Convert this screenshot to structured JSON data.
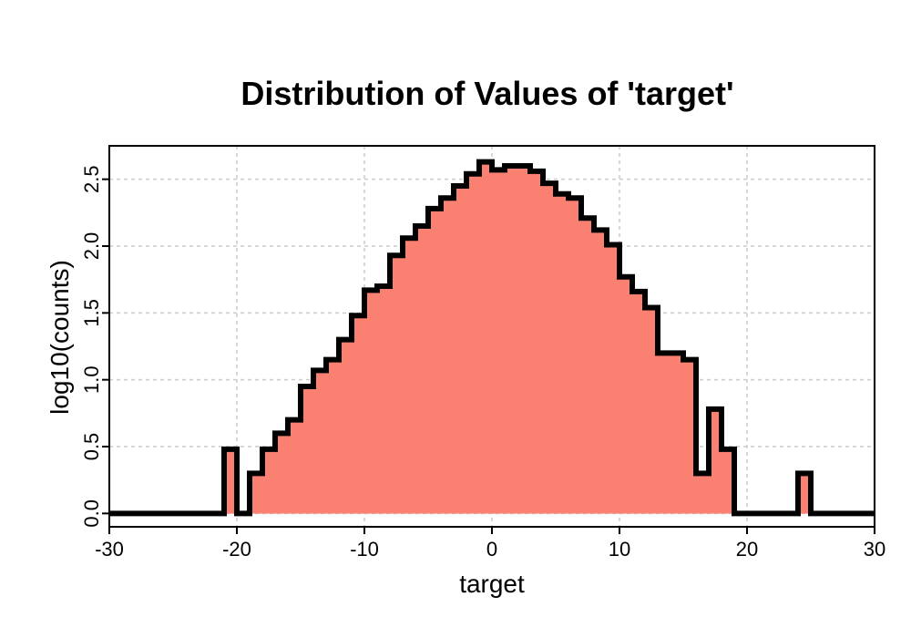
{
  "chart_data": {
    "type": "area",
    "title": "Distribution of Values of 'target'",
    "xlabel": "target",
    "ylabel": "log10(counts)",
    "xlim": [
      -30,
      30
    ],
    "ylim": [
      -0.1,
      2.75
    ],
    "xticks": [
      "-30",
      "-20",
      "-10",
      "0",
      "10",
      "20",
      "30"
    ],
    "yticks": [
      "0.0",
      "0.5",
      "1.0",
      "1.5",
      "2.0",
      "2.5"
    ],
    "grid": true,
    "fill_color": "#fa8072",
    "line_color": "#000000",
    "bins": [
      {
        "x0": -30,
        "x1": -21,
        "y": 0.0
      },
      {
        "x0": -21,
        "x1": -20,
        "y": 0.48
      },
      {
        "x0": -20,
        "x1": -19,
        "y": 0.0
      },
      {
        "x0": -19,
        "x1": -18,
        "y": 0.3
      },
      {
        "x0": -18,
        "x1": -17,
        "y": 0.48
      },
      {
        "x0": -17,
        "x1": -16,
        "y": 0.6
      },
      {
        "x0": -16,
        "x1": -15,
        "y": 0.7
      },
      {
        "x0": -15,
        "x1": -14,
        "y": 0.95
      },
      {
        "x0": -14,
        "x1": -13,
        "y": 1.07
      },
      {
        "x0": -13,
        "x1": -12,
        "y": 1.15
      },
      {
        "x0": -12,
        "x1": -11,
        "y": 1.3
      },
      {
        "x0": -11,
        "x1": -10,
        "y": 1.48
      },
      {
        "x0": -10,
        "x1": -9,
        "y": 1.67
      },
      {
        "x0": -9,
        "x1": -8,
        "y": 1.7
      },
      {
        "x0": -8,
        "x1": -7,
        "y": 1.93
      },
      {
        "x0": -7,
        "x1": -6,
        "y": 2.06
      },
      {
        "x0": -6,
        "x1": -5,
        "y": 2.15
      },
      {
        "x0": -5,
        "x1": -4,
        "y": 2.28
      },
      {
        "x0": -4,
        "x1": -3,
        "y": 2.36
      },
      {
        "x0": -3,
        "x1": -2,
        "y": 2.45
      },
      {
        "x0": -2,
        "x1": -1,
        "y": 2.54
      },
      {
        "x0": -1,
        "x1": 0,
        "y": 2.63
      },
      {
        "x0": 0,
        "x1": 1,
        "y": 2.57
      },
      {
        "x0": 1,
        "x1": 3,
        "y": 2.6
      },
      {
        "x0": 3,
        "x1": 4,
        "y": 2.56
      },
      {
        "x0": 4,
        "x1": 5,
        "y": 2.47
      },
      {
        "x0": 5,
        "x1": 6,
        "y": 2.39
      },
      {
        "x0": 6,
        "x1": 7,
        "y": 2.36
      },
      {
        "x0": 7,
        "x1": 8,
        "y": 2.21
      },
      {
        "x0": 8,
        "x1": 9,
        "y": 2.12
      },
      {
        "x0": 9,
        "x1": 10,
        "y": 2.01
      },
      {
        "x0": 10,
        "x1": 11,
        "y": 1.77
      },
      {
        "x0": 11,
        "x1": 12,
        "y": 1.66
      },
      {
        "x0": 12,
        "x1": 13,
        "y": 1.54
      },
      {
        "x0": 13,
        "x1": 15,
        "y": 1.2
      },
      {
        "x0": 15,
        "x1": 16,
        "y": 1.15
      },
      {
        "x0": 16,
        "x1": 17,
        "y": 0.3
      },
      {
        "x0": 17,
        "x1": 18,
        "y": 0.78
      },
      {
        "x0": 18,
        "x1": 19,
        "y": 0.48
      },
      {
        "x0": 19,
        "x1": 24,
        "y": 0.0
      },
      {
        "x0": 24,
        "x1": 25,
        "y": 0.3
      },
      {
        "x0": 25,
        "x1": 30,
        "y": 0.0
      }
    ]
  }
}
